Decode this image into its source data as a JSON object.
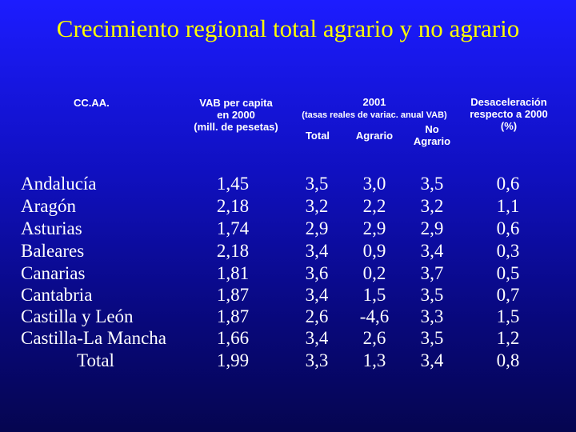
{
  "title": "Crecimiento regional total agrario y no agrario",
  "headers": {
    "ccaa": "CC.AA.",
    "vab_l1": "VAB per capita",
    "vab_l2": "en 2000",
    "vab_l3": "(mill. de pesetas)",
    "y2001": "2001",
    "y2001_sub": "(tasas reales de variac. anual VAB)",
    "total": "Total",
    "agrario": "Agrario",
    "no_agrario_l1": "No",
    "no_agrario_l2": "Agrario",
    "desac_l1": "Desaceleración",
    "desac_l2": "respecto a 2000",
    "desac_l3": "(%)"
  },
  "rows": [
    {
      "region": "Andalucía",
      "vab": "1,45",
      "total": "3,5",
      "agrario": "3,0",
      "no_agrario": "3,5",
      "desac": "0,6"
    },
    {
      "region": "Aragón",
      "vab": "2,18",
      "total": "3,2",
      "agrario": "2,2",
      "no_agrario": "3,2",
      "desac": "1,1"
    },
    {
      "region": "Asturias",
      "vab": "1,74",
      "total": "2,9",
      "agrario": "2,9",
      "no_agrario": "2,9",
      "desac": "0,6"
    },
    {
      "region": "Baleares",
      "vab": "2,18",
      "total": "3,4",
      "agrario": "0,9",
      "no_agrario": "3,4",
      "desac": "0,3"
    },
    {
      "region": "Canarias",
      "vab": "1,81",
      "total": "3,6",
      "agrario": "0,2",
      "no_agrario": "3,7",
      "desac": "0,5"
    },
    {
      "region": "Cantabria",
      "vab": "1,87",
      "total": "3,4",
      "agrario": "1,5",
      "no_agrario": "3,5",
      "desac": "0,7"
    },
    {
      "region": "Castilla y León",
      "vab": "1,87",
      "total": "2,6",
      "agrario": "-4,6",
      "no_agrario": "3,3",
      "desac": "1,5"
    },
    {
      "region": "Castilla-La Mancha",
      "vab": "1,66",
      "total": "3,4",
      "agrario": "2,6",
      "no_agrario": "3,5",
      "desac": "1,2"
    },
    {
      "region": "Total",
      "vab": "1,99",
      "total": "3,3",
      "agrario": "1,3",
      "no_agrario": "3,4",
      "desac": "0,8"
    }
  ],
  "colors": {
    "title": "#ffff00",
    "text": "#ffffff",
    "background": "#1010c0"
  }
}
